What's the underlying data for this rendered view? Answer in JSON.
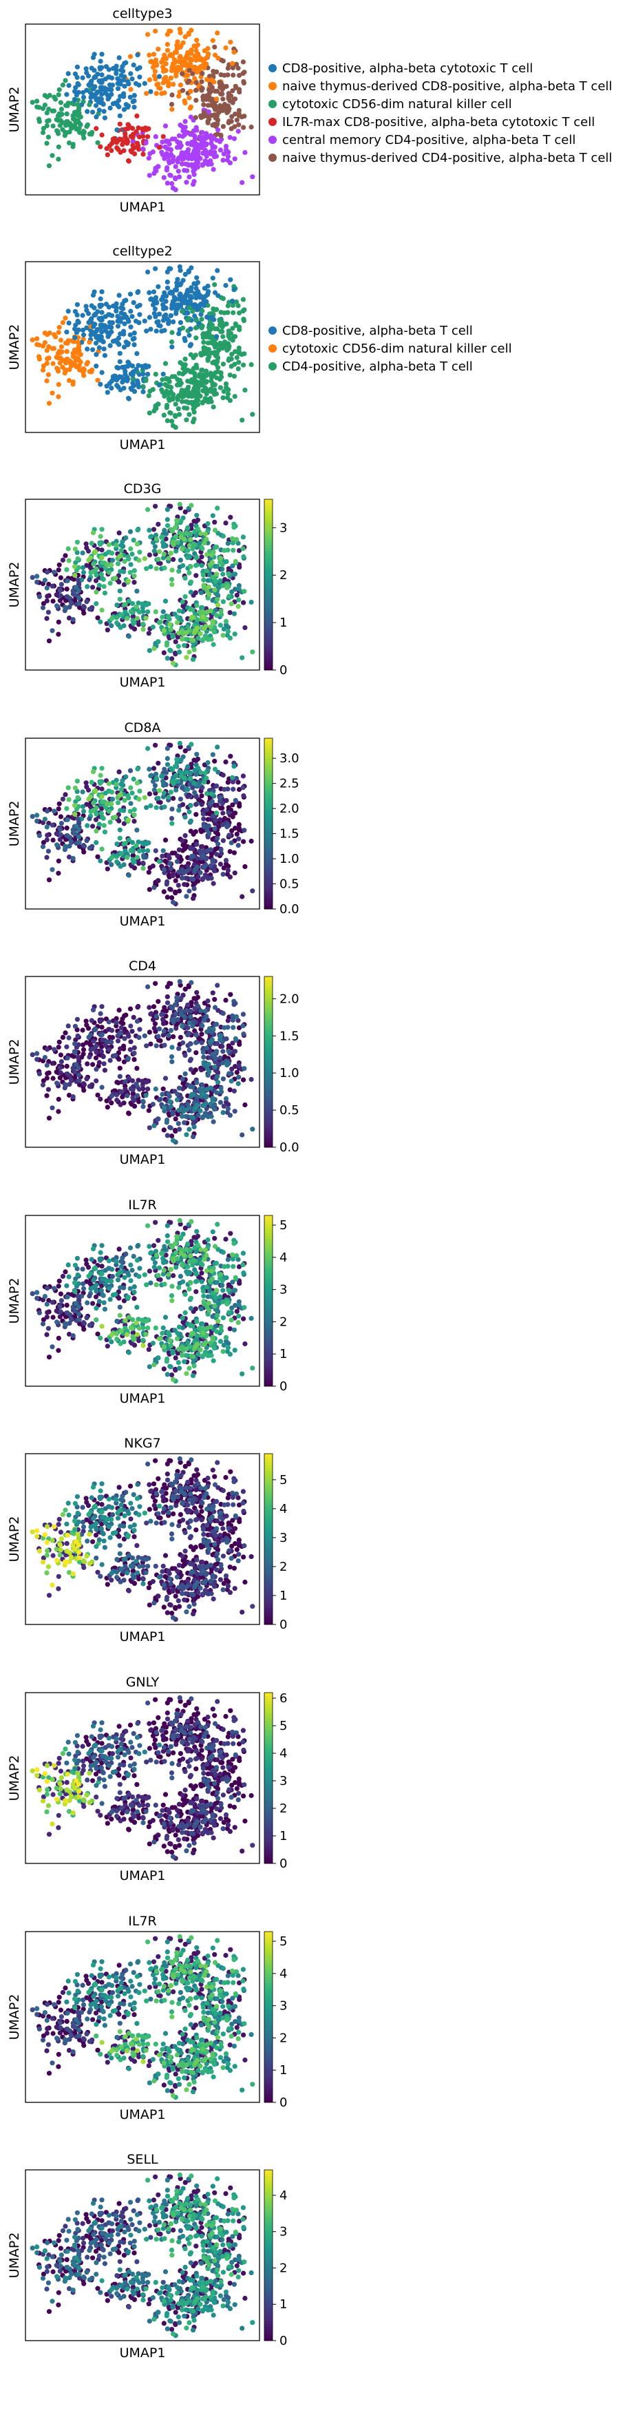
{
  "chart_data": [
    {
      "type": "scatter",
      "title": "celltype3",
      "xlabel": "UMAP1",
      "ylabel": "UMAP2",
      "legend_position": "right",
      "legend": [
        {
          "name": "CD8-positive, alpha-beta cytotoxic T cell",
          "color": "#1f77b4"
        },
        {
          "name": "naive thymus-derived CD8-positive, alpha-beta T cell",
          "color": "#ff7f0e"
        },
        {
          "name": "cytotoxic CD56-dim natural killer cell",
          "color": "#279e68"
        },
        {
          "name": "IL7R-max CD8-positive, alpha-beta cytotoxic T cell",
          "color": "#d62728"
        },
        {
          "name": "central memory CD4-positive, alpha-beta T cell",
          "color": "#aa40fc"
        },
        {
          "name": "naive thymus-derived CD4-positive, alpha-beta T cell",
          "color": "#8c564b"
        }
      ]
    },
    {
      "type": "scatter",
      "title": "celltype2",
      "xlabel": "UMAP1",
      "ylabel": "UMAP2",
      "legend_position": "right",
      "legend": [
        {
          "name": "CD8-positive, alpha-beta T cell",
          "color": "#1f77b4"
        },
        {
          "name": "cytotoxic CD56-dim natural killer cell",
          "color": "#ff7f0e"
        },
        {
          "name": "CD4-positive, alpha-beta T cell",
          "color": "#279e68"
        }
      ]
    },
    {
      "type": "scatter",
      "title": "CD3G",
      "xlabel": "UMAP1",
      "ylabel": "UMAP2",
      "colorbar": {
        "min": 0,
        "max": 3.6,
        "ticks": [
          "0",
          "1",
          "2",
          "3"
        ],
        "tick_values": [
          0,
          1,
          2,
          3
        ],
        "cmap": "viridis"
      }
    },
    {
      "type": "scatter",
      "title": "CD8A",
      "xlabel": "UMAP1",
      "ylabel": "UMAP2",
      "colorbar": {
        "min": 0,
        "max": 3.4,
        "ticks": [
          "0.0",
          "0.5",
          "1.0",
          "1.5",
          "2.0",
          "2.5",
          "3.0"
        ],
        "tick_values": [
          0,
          0.5,
          1,
          1.5,
          2,
          2.5,
          3
        ],
        "cmap": "viridis"
      }
    },
    {
      "type": "scatter",
      "title": "CD4",
      "xlabel": "UMAP1",
      "ylabel": "UMAP2",
      "colorbar": {
        "min": 0,
        "max": 2.3,
        "ticks": [
          "0.0",
          "0.5",
          "1.0",
          "1.5",
          "2.0"
        ],
        "tick_values": [
          0,
          0.5,
          1,
          1.5,
          2
        ],
        "cmap": "viridis"
      }
    },
    {
      "type": "scatter",
      "title": "IL7R",
      "xlabel": "UMAP1",
      "ylabel": "UMAP2",
      "colorbar": {
        "min": 0,
        "max": 5.3,
        "ticks": [
          "0",
          "1",
          "2",
          "3",
          "4",
          "5"
        ],
        "tick_values": [
          0,
          1,
          2,
          3,
          4,
          5
        ],
        "cmap": "viridis"
      }
    },
    {
      "type": "scatter",
      "title": "NKG7",
      "xlabel": "UMAP1",
      "ylabel": "UMAP2",
      "colorbar": {
        "min": 0,
        "max": 5.9,
        "ticks": [
          "0",
          "1",
          "2",
          "3",
          "4",
          "5"
        ],
        "tick_values": [
          0,
          1,
          2,
          3,
          4,
          5
        ],
        "cmap": "viridis"
      }
    },
    {
      "type": "scatter",
      "title": "GNLY",
      "xlabel": "UMAP1",
      "ylabel": "UMAP2",
      "colorbar": {
        "min": 0,
        "max": 6.2,
        "ticks": [
          "0",
          "1",
          "2",
          "3",
          "4",
          "5",
          "6"
        ],
        "tick_values": [
          0,
          1,
          2,
          3,
          4,
          5,
          6
        ],
        "cmap": "viridis"
      }
    },
    {
      "type": "scatter",
      "title": "IL7R",
      "xlabel": "UMAP1",
      "ylabel": "UMAP2",
      "colorbar": {
        "min": 0,
        "max": 5.3,
        "ticks": [
          "0",
          "1",
          "2",
          "3",
          "4",
          "5"
        ],
        "tick_values": [
          0,
          1,
          2,
          3,
          4,
          5
        ],
        "cmap": "viridis"
      }
    },
    {
      "type": "scatter",
      "title": "SELL",
      "xlabel": "UMAP1",
      "ylabel": "UMAP2",
      "colorbar": {
        "min": 0,
        "max": 4.7,
        "ticks": [
          "0",
          "1",
          "2",
          "3",
          "4"
        ],
        "tick_values": [
          0,
          1,
          2,
          3,
          4
        ],
        "cmap": "viridis"
      }
    }
  ]
}
